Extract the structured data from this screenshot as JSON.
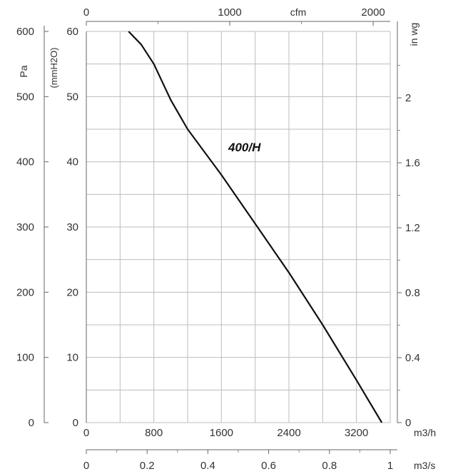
{
  "chart_data": {
    "type": "line",
    "series": [
      {
        "name": "400/H",
        "x": [
          500,
          650,
          800,
          1000,
          1200,
          1600,
          2000,
          2400,
          2800,
          3200,
          3500
        ],
        "y": [
          600,
          580,
          550,
          495,
          450,
          380,
          305,
          230,
          150,
          65,
          0
        ]
      }
    ],
    "primary_axis": {
      "x_label": "m3/h",
      "x_ticks": [
        "0",
        "800",
        "1600",
        "2400",
        "3200"
      ],
      "xlim": [
        0,
        3600
      ],
      "y_label": "Pa",
      "y_ticks": [
        "0",
        "100",
        "200",
        "300",
        "400",
        "500",
        "600"
      ],
      "ylim": [
        0,
        600
      ]
    },
    "secondary_axes": {
      "left_inner": {
        "label": "(mmH2O)",
        "ticks": [
          "0",
          "10",
          "20",
          "30",
          "40",
          "50",
          "60"
        ]
      },
      "right": {
        "label": "in wg",
        "ticks": [
          "0",
          "0.4",
          "0.8",
          "1.2",
          "1.6",
          "2"
        ]
      },
      "top": {
        "label": "cfm",
        "ticks": [
          "0",
          "1000",
          "2000"
        ]
      },
      "bottom2": {
        "label": "m3/s",
        "ticks": [
          "0",
          "0.2",
          "0.4",
          "0.6",
          "0.8",
          "1"
        ]
      }
    },
    "grid": true
  }
}
